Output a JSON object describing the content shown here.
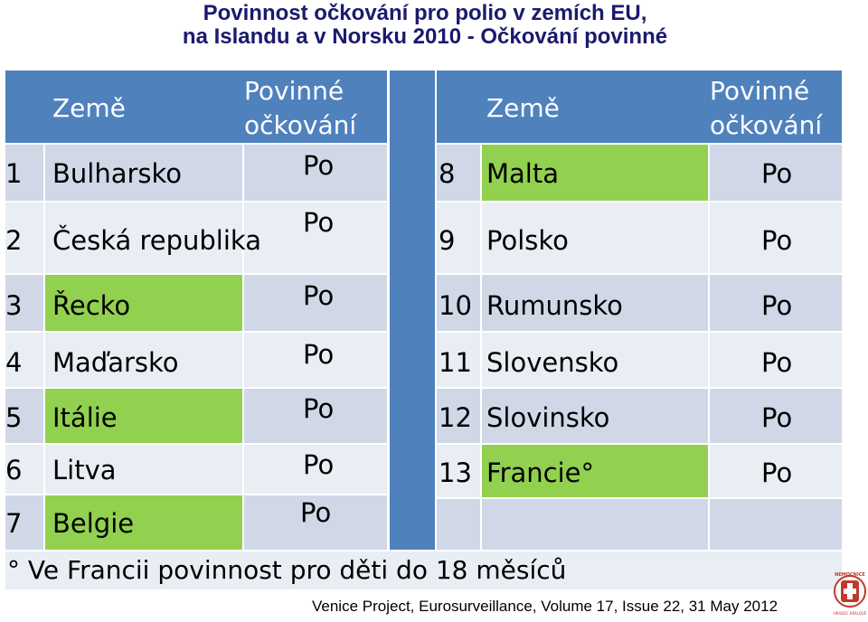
{
  "title": {
    "line1": "Povinnost očkování pro polio v zemích EU,",
    "line2": "na Islandu a v Norsku  2010 - Očkování povinné"
  },
  "headers": {
    "left_country": "Země",
    "left_mandatory": "Povinné očkování",
    "left_mandatory_1": "Povinné",
    "left_mandatory_2": "očkování",
    "right_country": "Země",
    "right_mandatory_1": "Povinné",
    "right_mandatory_2": "očkování"
  },
  "left_rows": [
    {
      "num": "1",
      "country": "Bulharsko",
      "value": "Po",
      "highlight": false
    },
    {
      "num": "2",
      "country": "Česká republika",
      "value": "Po",
      "highlight": false
    },
    {
      "num": "3",
      "country": "Řecko",
      "value": "Po",
      "highlight": true
    },
    {
      "num": "4",
      "country": "Maďarsko",
      "value": "Po",
      "highlight": false
    },
    {
      "num": "5",
      "country": "Itálie",
      "value": "Po",
      "highlight": true
    },
    {
      "num": "6",
      "country": "Litva",
      "value": "Po",
      "highlight": false
    },
    {
      "num": "7",
      "country": "Belgie",
      "value": "Po",
      "highlight": true
    }
  ],
  "right_rows": [
    {
      "num": "8",
      "country": "Malta",
      "value": "Po",
      "highlight": true
    },
    {
      "num": "9",
      "country": "Polsko",
      "value": "Po",
      "highlight": false
    },
    {
      "num": "10",
      "country": "Rumunsko",
      "value": "Po",
      "highlight": false
    },
    {
      "num": "11",
      "country": "Slovensko",
      "value": "Po",
      "highlight": false
    },
    {
      "num": "12",
      "country": "Slovinsko",
      "value": "Po",
      "highlight": false
    },
    {
      "num": "13",
      "country": "Francie°",
      "value": "Po",
      "highlight": true
    }
  ],
  "footnote": "° Ve Francii povinnost pro děti do 18 měsíců",
  "source": "Venice Project, Eurosurveillance, Volume 17, Issue 22, 31 May 2012",
  "logo": {
    "text": "NEMOCNICE · HRADEC KRÁLOVÉ",
    "icon": "hospital-cross-logo-icon"
  },
  "colors": {
    "header": "#4f81bd",
    "row": "#d0d8e8",
    "row_alt": "#e9edf4",
    "highlight": "#92d050",
    "title": "#1a1a6e"
  }
}
